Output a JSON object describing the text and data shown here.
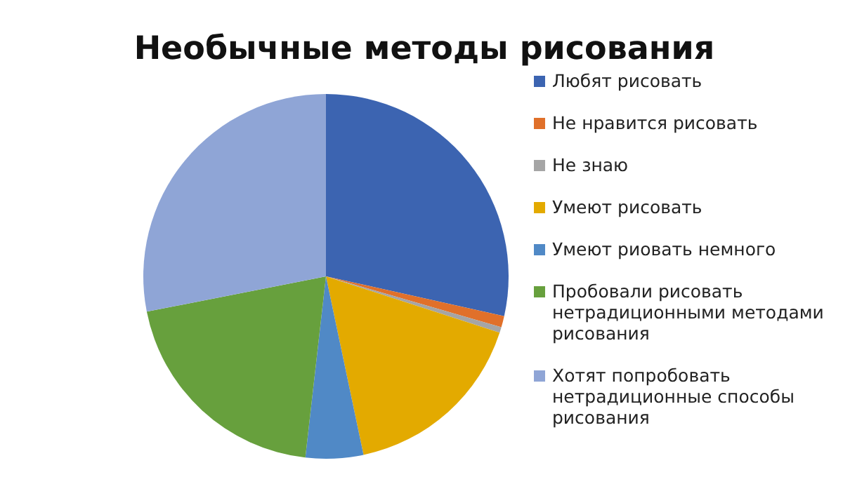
{
  "chart_data": {
    "type": "pie",
    "title": "Необычные методы рисования",
    "categories": [
      "Любят рисовать",
      "Не нравится рисовать",
      "Не знаю",
      "Умеют рисовать",
      "Умеют риовать немного",
      "Пробовали рисовать нетрадиционными методами рисования",
      "Хотят попробовать нетрадиционные способы рисования"
    ],
    "values": [
      28.5,
      1,
      0.5,
      16.7,
      5.1,
      20.1,
      28.1
    ],
    "colors": [
      "#3c64b1",
      "#e0702a",
      "#a5a5a5",
      "#e3aa00",
      "#5089c6",
      "#67a03d",
      "#8fa5d6"
    ],
    "legend": "right"
  }
}
